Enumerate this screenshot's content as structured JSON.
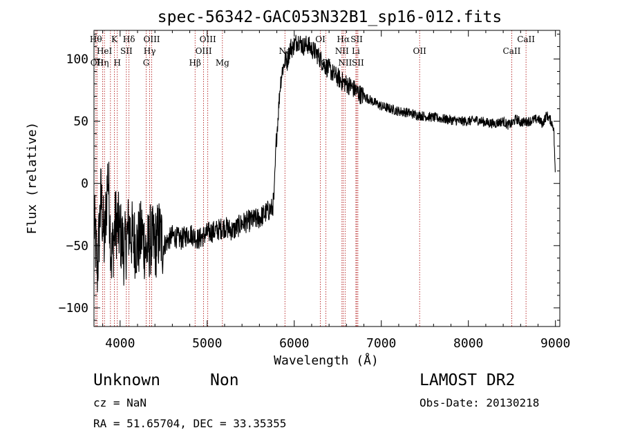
{
  "chart_data": {
    "type": "line",
    "title": "spec-56342-GAC053N32B1_sp16-012.fits",
    "xlabel": "Wavelength (Å)",
    "ylabel": "Flux (relative)",
    "xlim": [
      3700,
      9050
    ],
    "ylim": [
      -115,
      123
    ],
    "xticks": [
      4000,
      5000,
      6000,
      7000,
      8000,
      9000
    ],
    "yticks": [
      -100,
      -50,
      0,
      50,
      100
    ],
    "grid": false,
    "series": [
      {
        "values_x": [
          3700,
          3740,
          3780,
          3820,
          3860,
          3900,
          3950,
          4000,
          4050,
          4100,
          4150,
          4200,
          4250,
          4300,
          4350,
          4400,
          4450,
          4500,
          4600,
          4700,
          4800,
          4900,
          5000,
          5100,
          5200,
          5300,
          5400,
          5500,
          5600,
          5650,
          5700,
          5750,
          5770,
          5790,
          5800,
          5820,
          5840,
          5860,
          5880,
          5900,
          5920,
          5940,
          5960,
          5980,
          6000,
          6050,
          6100,
          6150,
          6200,
          6250,
          6300,
          6350,
          6400,
          6450,
          6500,
          6550,
          6600,
          6650,
          6700,
          6750,
          6800,
          6900,
          7000,
          7100,
          7200,
          7300,
          7400,
          7500,
          7600,
          7700,
          7800,
          7900,
          8000,
          8100,
          8200,
          8300,
          8400,
          8450,
          8500,
          8550,
          8600,
          8700,
          8800,
          8850,
          8900,
          8950,
          8980,
          9000
        ],
        "values": [
          -30,
          -70,
          -10,
          -50,
          10,
          -60,
          -30,
          -40,
          -55,
          -35,
          -45,
          -50,
          -40,
          -55,
          -45,
          -50,
          -40,
          -50,
          -42,
          -45,
          -40,
          -45,
          -40,
          -38,
          -35,
          -38,
          -32,
          -30,
          -28,
          -25,
          -22,
          -20,
          -10,
          30,
          40,
          60,
          80,
          90,
          95,
          100,
          98,
          105,
          110,
          108,
          112,
          115,
          110,
          112,
          108,
          105,
          100,
          95,
          92,
          88,
          85,
          82,
          80,
          78,
          75,
          72,
          70,
          66,
          62,
          60,
          58,
          57,
          55,
          54,
          53,
          52,
          51,
          50,
          50,
          51,
          49,
          48,
          50,
          47,
          48,
          52,
          49,
          50,
          52,
          48,
          55,
          50,
          45,
          5
        ]
      }
    ],
    "lines": [
      {
        "x": 3722,
        "row1": "Hθ",
        "row2": "",
        "row3": ""
      },
      {
        "x": 3735,
        "row1": "",
        "row2": "",
        "row3": "OII"
      },
      {
        "x": 3800,
        "row1": "",
        "row2": "",
        "row3": "Hη"
      },
      {
        "x": 3820,
        "row1": "",
        "row2": "HeI",
        "row3": ""
      },
      {
        "x": 3889,
        "row1": "",
        "row2": "",
        "row3": ""
      },
      {
        "x": 3934,
        "row1": "K",
        "row2": "",
        "row3": ""
      },
      {
        "x": 3968,
        "row1": "",
        "row2": "",
        "row3": "H"
      },
      {
        "x": 4072,
        "row1": "",
        "row2": "SII",
        "row3": ""
      },
      {
        "x": 4102,
        "row1": "Hδ",
        "row2": "",
        "row3": ""
      },
      {
        "x": 4300,
        "row1": "",
        "row2": "",
        "row3": "G"
      },
      {
        "x": 4340,
        "row1": "",
        "row2": "Hγ",
        "row3": ""
      },
      {
        "x": 4363,
        "row1": "OIII",
        "row2": "",
        "row3": ""
      },
      {
        "x": 4861,
        "row1": "",
        "row2": "",
        "row3": "Hβ"
      },
      {
        "x": 4959,
        "row1": "",
        "row2": "OIII",
        "row3": ""
      },
      {
        "x": 5007,
        "row1": "OIII",
        "row2": "",
        "row3": ""
      },
      {
        "x": 5175,
        "row1": "",
        "row2": "",
        "row3": "Mg"
      },
      {
        "x": 5893,
        "row1": "",
        "row2": "Na",
        "row3": ""
      },
      {
        "x": 6300,
        "row1": "OI",
        "row2": "",
        "row3": ""
      },
      {
        "x": 6364,
        "row1": "",
        "row2": "",
        "row3": "OI"
      },
      {
        "x": 6548,
        "row1": "",
        "row2": "NII",
        "row3": ""
      },
      {
        "x": 6563,
        "row1": "Hα",
        "row2": "",
        "row3": ""
      },
      {
        "x": 6584,
        "row1": "",
        "row2": "",
        "row3": "NII"
      },
      {
        "x": 6708,
        "row1": "",
        "row2": "Li",
        "row3": ""
      },
      {
        "x": 6717,
        "row1": "SII",
        "row2": "",
        "row3": ""
      },
      {
        "x": 6731,
        "row1": "",
        "row2": "",
        "row3": "SII"
      },
      {
        "x": 7440,
        "row1": "",
        "row2": "OII",
        "row3": ""
      },
      {
        "x": 8498,
        "row1": "",
        "row2": "CaII",
        "row3": ""
      },
      {
        "x": 8662,
        "row1": "CaII",
        "row2": "",
        "row3": ""
      }
    ]
  },
  "info": {
    "class": "Unknown",
    "subclass": "Non",
    "survey": "LAMOST DR2",
    "cz": "cz = NaN",
    "obs_date": "Obs-Date: 20130218",
    "coords": "RA =  51.65704, DEC =  33.35355"
  },
  "colors": {
    "line_marker": "#aa0000",
    "spectrum": "#000000"
  }
}
